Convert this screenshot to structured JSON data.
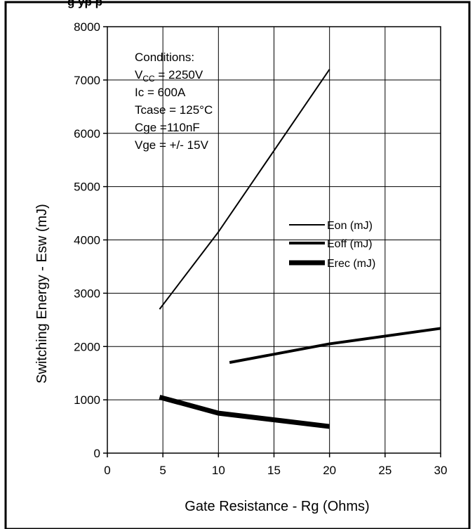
{
  "chart_data": {
    "type": "line",
    "title_visible": "g  yp      p",
    "xlabel": "Gate Resistance - Rg (Ohms)",
    "ylabel": "Switching Energy - Esw (mJ)",
    "xlim": [
      0,
      30
    ],
    "ylim": [
      0,
      8000
    ],
    "x_ticks": [
      0,
      5,
      10,
      15,
      20,
      25,
      30
    ],
    "y_ticks": [
      0,
      1000,
      2000,
      3000,
      4000,
      5000,
      6000,
      7000,
      8000
    ],
    "grid": true,
    "conditions": {
      "heading": "Conditions:",
      "lines": [
        {
          "main": "V",
          "sub": "CC",
          "rest": " = 2250V"
        },
        {
          "main": "Ic = 600A",
          "sub": "",
          "rest": ""
        },
        {
          "main": "Tcase = 125°C",
          "sub": "",
          "rest": ""
        },
        {
          "main": "Cge =110nF",
          "sub": "",
          "rest": ""
        },
        {
          "main": "Vge = +/- 15V",
          "sub": "",
          "rest": ""
        }
      ]
    },
    "legend_position": "middle-right",
    "series": [
      {
        "name": "Eon (mJ)",
        "stroke_width": 2,
        "x": [
          4.7,
          10,
          20
        ],
        "y": [
          2700,
          4150,
          7200
        ]
      },
      {
        "name": "Eoff (mJ)",
        "stroke_width": 4,
        "x": [
          11,
          20,
          30
        ],
        "y": [
          1700,
          2050,
          2340
        ]
      },
      {
        "name": "Erec (mJ)",
        "stroke_width": 7,
        "x": [
          4.7,
          10,
          20
        ],
        "y": [
          1050,
          750,
          500
        ]
      }
    ]
  }
}
